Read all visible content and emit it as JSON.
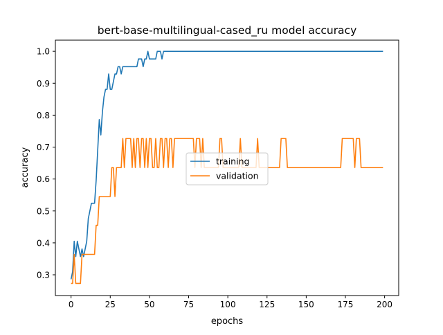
{
  "chart_data": {
    "type": "line",
    "title": "bert-base-multilingual-cased_ru model accuracy",
    "xlabel": "epochs",
    "ylabel": "accuracy",
    "xlim": [
      -10,
      209
    ],
    "ylim": [
      0.235,
      1.035
    ],
    "xticks": [
      0,
      25,
      50,
      75,
      100,
      125,
      150,
      175,
      200
    ],
    "xtick_labels": [
      "0",
      "25",
      "50",
      "75",
      "100",
      "125",
      "150",
      "175",
      "200"
    ],
    "yticks": [
      0.3,
      0.4,
      0.5,
      0.6,
      0.7,
      0.8,
      0.9,
      1.0
    ],
    "ytick_labels": [
      "0.3",
      "0.4",
      "0.5",
      "0.6",
      "0.7",
      "0.8",
      "0.9",
      "1.0"
    ],
    "grid": false,
    "legend_position": "center",
    "series": [
      {
        "name": "training",
        "color": "#1f77b4",
        "points": [
          [
            0,
            0.286
          ],
          [
            1,
            0.31
          ],
          [
            2,
            0.405
          ],
          [
            3,
            0.357
          ],
          [
            4,
            0.405
          ],
          [
            5,
            0.381
          ],
          [
            6,
            0.357
          ],
          [
            7,
            0.381
          ],
          [
            8,
            0.357
          ],
          [
            9,
            0.381
          ],
          [
            10,
            0.405
          ],
          [
            11,
            0.476
          ],
          [
            12,
            0.5
          ],
          [
            13,
            0.524
          ],
          [
            14,
            0.524
          ],
          [
            15,
            0.524
          ],
          [
            16,
            0.595
          ],
          [
            17,
            0.69
          ],
          [
            18,
            0.786
          ],
          [
            19,
            0.738
          ],
          [
            20,
            0.81
          ],
          [
            21,
            0.857
          ],
          [
            22,
            0.881
          ],
          [
            23,
            0.881
          ],
          [
            24,
            0.929
          ],
          [
            25,
            0.881
          ],
          [
            26,
            0.881
          ],
          [
            27,
            0.905
          ],
          [
            28,
            0.929
          ],
          [
            29,
            0.929
          ],
          [
            30,
            0.952
          ],
          [
            31,
            0.952
          ],
          [
            32,
            0.929
          ],
          [
            33,
            0.952
          ],
          [
            34,
            0.952
          ],
          [
            35,
            0.952
          ],
          [
            36,
            0.952
          ],
          [
            37,
            0.952
          ],
          [
            38,
            0.952
          ],
          [
            39,
            0.952
          ],
          [
            40,
            0.952
          ],
          [
            41,
            0.952
          ],
          [
            42,
            0.952
          ],
          [
            43,
            0.976
          ],
          [
            44,
            0.976
          ],
          [
            45,
            0.976
          ],
          [
            46,
            0.952
          ],
          [
            47,
            0.976
          ],
          [
            48,
            0.976
          ],
          [
            49,
            1.0
          ],
          [
            50,
            0.976
          ],
          [
            51,
            0.976
          ],
          [
            52,
            0.976
          ],
          [
            53,
            0.976
          ],
          [
            54,
            0.976
          ],
          [
            55,
            1.0
          ],
          [
            56,
            1.0
          ],
          [
            57,
            1.0
          ],
          [
            58,
            0.976
          ],
          [
            59,
            1.0
          ],
          [
            60,
            1.0
          ],
          [
            199,
            1.0
          ]
        ]
      },
      {
        "name": "validation",
        "color": "#ff7f0e",
        "points": [
          [
            0,
            0.273
          ],
          [
            1,
            0.273
          ],
          [
            2,
            0.364
          ],
          [
            3,
            0.273
          ],
          [
            4,
            0.273
          ],
          [
            5,
            0.273
          ],
          [
            6,
            0.273
          ],
          [
            7,
            0.364
          ],
          [
            8,
            0.364
          ],
          [
            9,
            0.364
          ],
          [
            15,
            0.364
          ],
          [
            16,
            0.455
          ],
          [
            17,
            0.455
          ],
          [
            18,
            0.545
          ],
          [
            25,
            0.545
          ],
          [
            26,
            0.636
          ],
          [
            27,
            0.636
          ],
          [
            28,
            0.545
          ],
          [
            29,
            0.636
          ],
          [
            32,
            0.636
          ],
          [
            33,
            0.727
          ],
          [
            34,
            0.636
          ],
          [
            35,
            0.727
          ],
          [
            38,
            0.727
          ],
          [
            39,
            0.636
          ],
          [
            40,
            0.727
          ],
          [
            41,
            0.636
          ],
          [
            42,
            0.727
          ],
          [
            43,
            0.727
          ],
          [
            44,
            0.636
          ],
          [
            45,
            0.727
          ],
          [
            46,
            0.727
          ],
          [
            47,
            0.636
          ],
          [
            48,
            0.727
          ],
          [
            49,
            0.636
          ],
          [
            50,
            0.727
          ],
          [
            51,
            0.727
          ],
          [
            52,
            0.636
          ],
          [
            53,
            0.636
          ],
          [
            54,
            0.727
          ],
          [
            55,
            0.636
          ],
          [
            56,
            0.636
          ],
          [
            57,
            0.727
          ],
          [
            58,
            0.727
          ],
          [
            59,
            0.636
          ],
          [
            60,
            0.727
          ],
          [
            61,
            0.727
          ],
          [
            62,
            0.636
          ],
          [
            63,
            0.727
          ],
          [
            64,
            0.727
          ],
          [
            65,
            0.636
          ],
          [
            66,
            0.727
          ],
          [
            77,
            0.727
          ],
          [
            78,
            0.727
          ],
          [
            79,
            0.636
          ],
          [
            80,
            0.727
          ],
          [
            82,
            0.727
          ],
          [
            83,
            0.636
          ],
          [
            84,
            0.727
          ],
          [
            85,
            0.636
          ],
          [
            94,
            0.636
          ],
          [
            95,
            0.727
          ],
          [
            96,
            0.727
          ],
          [
            97,
            0.636
          ],
          [
            107,
            0.636
          ],
          [
            108,
            0.727
          ],
          [
            109,
            0.636
          ],
          [
            118,
            0.636
          ],
          [
            119,
            0.727
          ],
          [
            120,
            0.636
          ],
          [
            133,
            0.636
          ],
          [
            134,
            0.727
          ],
          [
            137,
            0.727
          ],
          [
            138,
            0.636
          ],
          [
            172,
            0.636
          ],
          [
            173,
            0.727
          ],
          [
            180,
            0.727
          ],
          [
            181,
            0.636
          ],
          [
            182,
            0.727
          ],
          [
            184,
            0.727
          ],
          [
            185,
            0.636
          ],
          [
            199,
            0.636
          ]
        ]
      }
    ]
  }
}
